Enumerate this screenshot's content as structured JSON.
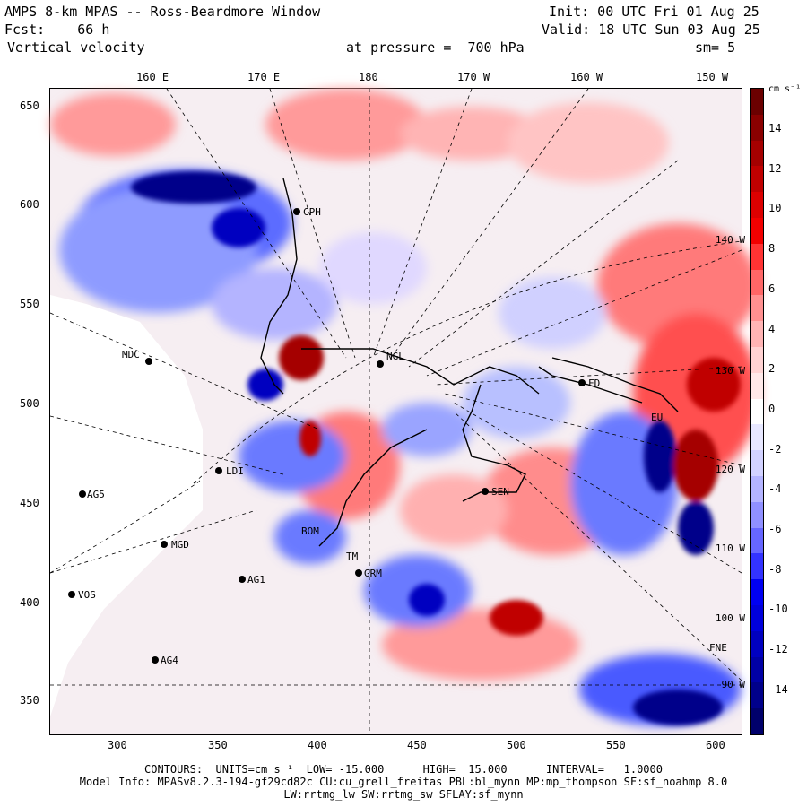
{
  "header": {
    "line1_left": "AMPS 8-km MPAS -- Ross-Beardmore Window",
    "line2_left": "Fcst:    66 h",
    "line3_left": "Vertical velocity",
    "line1_right": "Init: 00 UTC Fri 01 Aug 25",
    "line2_right": "Valid: 18 UTC Sun 03 Aug 25",
    "pressure": "at pressure =  700 hPa",
    "smoothing": "sm= 5"
  },
  "top_axis": [
    "160 E",
    "170 E",
    "180",
    "170 W",
    "160 W",
    "150 W"
  ],
  "left_axis": [
    "650",
    "600",
    "550",
    "500",
    "450",
    "400",
    "350"
  ],
  "bottom_axis": [
    "300",
    "350",
    "400",
    "450",
    "500",
    "550",
    "600"
  ],
  "right_lon_labels": [
    "140 W",
    "130 W",
    "120 W",
    "110 W",
    "100 W",
    "90 W"
  ],
  "stations": [
    {
      "name": "CPH"
    },
    {
      "name": "NGL"
    },
    {
      "name": "MDC"
    },
    {
      "name": "FD"
    },
    {
      "name": "SEN"
    },
    {
      "name": "AG5"
    },
    {
      "name": "MGD"
    },
    {
      "name": "AG1"
    },
    {
      "name": "VOS"
    },
    {
      "name": "AG4"
    },
    {
      "name": "GRM"
    },
    {
      "name": "TM"
    },
    {
      "name": "BOM"
    },
    {
      "name": "FNE"
    },
    {
      "name": "EU"
    },
    {
      "name": "LDI"
    }
  ],
  "colorbar": {
    "unit": "cm s⁻¹",
    "labels": [
      "14",
      "12",
      "10",
      "8",
      "6",
      "4",
      "2",
      "0",
      "-2",
      "-4",
      "-6",
      "-8",
      "-10",
      "-12",
      "-14"
    ],
    "colors": [
      "#6b0000",
      "#8a0000",
      "#a50000",
      "#c00000",
      "#dc0000",
      "#f20000",
      "#ff3333",
      "#ff6666",
      "#ff9090",
      "#ffb4b4",
      "#ffd2d2",
      "#ffe8e8",
      "#ffffff",
      "#e8e8ff",
      "#d2d2ff",
      "#b4b4ff",
      "#9090ff",
      "#6666ff",
      "#3333ff",
      "#0000f2",
      "#0000dc",
      "#0000c0",
      "#0000a5",
      "#00008a",
      "#00006b"
    ]
  },
  "footer": {
    "contours": "CONTOURS:  UNITS=cm s⁻¹  LOW= -15.000      HIGH=  15.000      INTERVAL=   1.0000",
    "model": "Model Info: MPASv8.2.3-194-gf29cd82c CU:cu_grell_freitas PBL:bl_mynn MP:mp_thompson SF:sf_noahmp 8.0",
    "physics": "LW:rrtmg_lw SW:rrtmg_sw SFLAY:sf_mynn"
  }
}
